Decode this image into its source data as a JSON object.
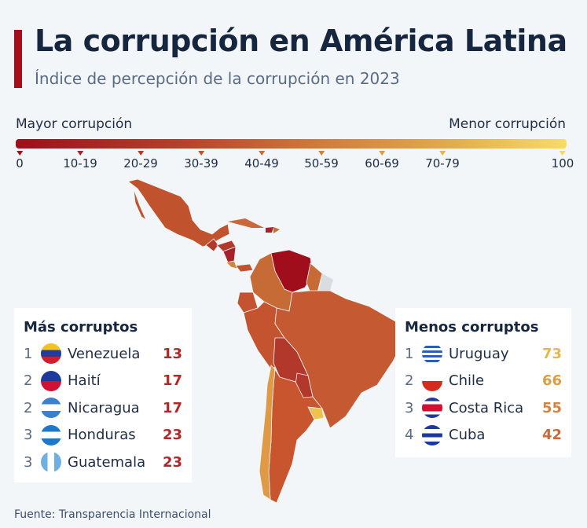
{
  "header": {
    "title": "La corrupción en América Latina",
    "subtitle": "Índice de percepción de la corrupción en 2023"
  },
  "legend": {
    "left_label": "Mayor corrupción",
    "right_label": "Menor corrupción",
    "ticks": [
      "0",
      "10-19",
      "20-29",
      "30-39",
      "40-49",
      "50-59",
      "60-69",
      "70-79",
      "100"
    ],
    "tick_colors": [
      "#a00d1b",
      "#a8202a",
      "#b33a2a",
      "#bd5230",
      "#c66a36",
      "#cf823c",
      "#d99b45",
      "#e3b651",
      "#f5d862"
    ]
  },
  "most_corrupt": {
    "title": "Más corruptos",
    "items": [
      {
        "rank": "1",
        "country": "Venezuela",
        "score": "13",
        "flag": "venezuela-flag-icon"
      },
      {
        "rank": "2",
        "country": "Haití",
        "score": "17",
        "flag": "haiti-flag-icon"
      },
      {
        "rank": "2",
        "country": "Nicaragua",
        "score": "17",
        "flag": "nicaragua-flag-icon"
      },
      {
        "rank": "3",
        "country": "Honduras",
        "score": "23",
        "flag": "honduras-flag-icon"
      },
      {
        "rank": "3",
        "country": "Guatemala",
        "score": "23",
        "flag": "guatemala-flag-icon"
      }
    ],
    "score_color": "#b0292a"
  },
  "least_corrupt": {
    "title": "Menos corruptos",
    "items": [
      {
        "rank": "1",
        "country": "Uruguay",
        "score": "73",
        "flag": "uruguay-flag-icon",
        "color": "#e6b84a"
      },
      {
        "rank": "2",
        "country": "Chile",
        "score": "66",
        "flag": "chile-flag-icon",
        "color": "#dc9e45"
      },
      {
        "rank": "3",
        "country": "Costa Rica",
        "score": "55",
        "flag": "costa-rica-flag-icon",
        "color": "#d2853e"
      },
      {
        "rank": "4",
        "country": "Cuba",
        "score": "42",
        "flag": "cuba-flag-icon",
        "color": "#c8693a"
      }
    ]
  },
  "source": "Fuente: Transparencia Internacional"
}
